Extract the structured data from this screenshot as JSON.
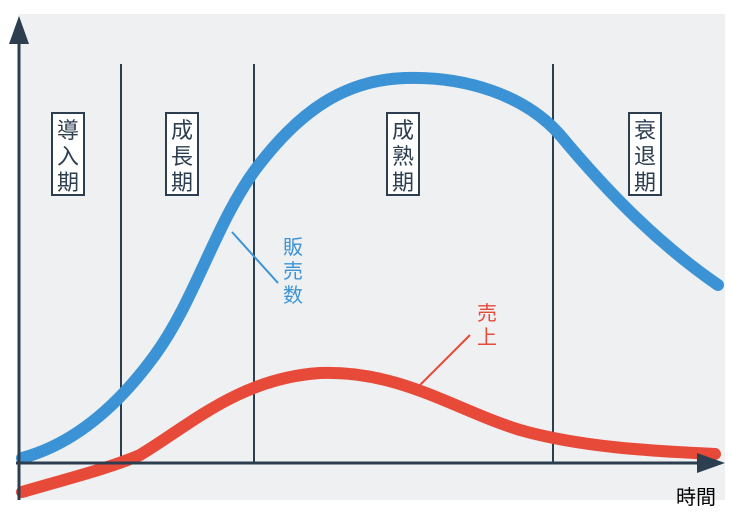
{
  "stages": [
    "導入期",
    "成長期",
    "成熟期",
    "衰退期"
  ],
  "curves": {
    "units_sold": {
      "label": "販売数",
      "color": "#3b93d6"
    },
    "sales": {
      "label": "売上",
      "color": "#e84a3a"
    }
  },
  "x_axis_label": "時間",
  "colors": {
    "background": "#eef0f1",
    "axis": "#2c3e50",
    "divider": "#2c3e50"
  }
}
